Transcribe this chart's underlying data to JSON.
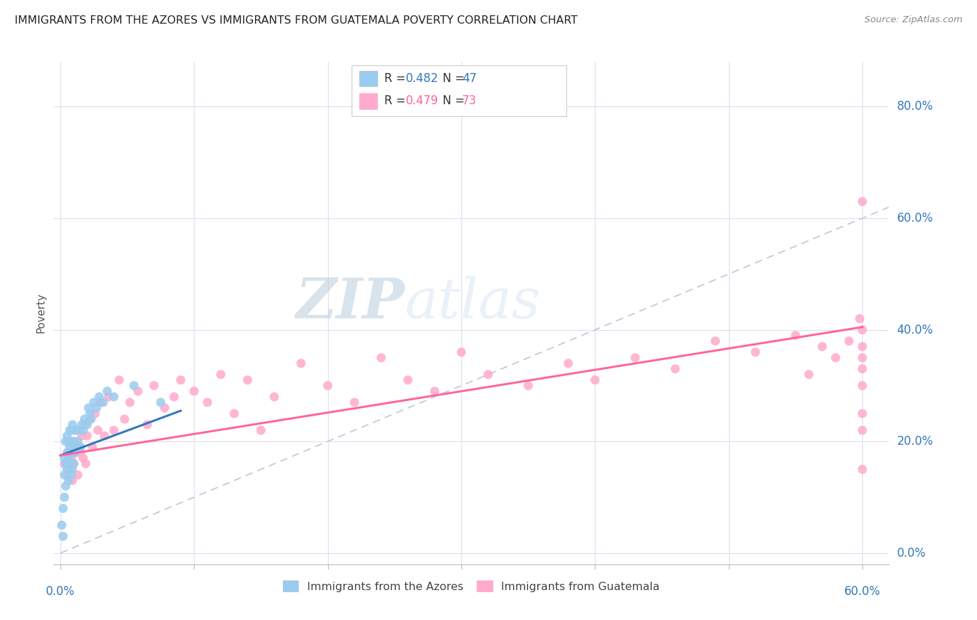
{
  "title": "IMMIGRANTS FROM THE AZORES VS IMMIGRANTS FROM GUATEMALA POVERTY CORRELATION CHART",
  "source": "Source: ZipAtlas.com",
  "ylabel": "Poverty",
  "ytick_labels": [
    "0.0%",
    "20.0%",
    "40.0%",
    "60.0%",
    "80.0%"
  ],
  "ytick_values": [
    0.0,
    0.2,
    0.4,
    0.6,
    0.8
  ],
  "xtick_vals": [
    0.0,
    0.1,
    0.2,
    0.3,
    0.4,
    0.5,
    0.6
  ],
  "xlim": [
    -0.005,
    0.62
  ],
  "ylim": [
    -0.02,
    0.88
  ],
  "legend_r1": "R = 0.482",
  "legend_n1": "N = 47",
  "legend_r2": "R = 0.479",
  "legend_n2": "N = 73",
  "azores_color": "#99CCEE",
  "guatemala_color": "#FFAACC",
  "azores_line_color": "#3377BB",
  "guatemala_line_color": "#FF6699",
  "diagonal_color": "#BBCCDD",
  "watermark_zip": "ZIP",
  "watermark_atlas": "atlas",
  "azores_points_x": [
    0.001,
    0.002,
    0.002,
    0.003,
    0.003,
    0.003,
    0.004,
    0.004,
    0.004,
    0.005,
    0.005,
    0.005,
    0.006,
    0.006,
    0.006,
    0.007,
    0.007,
    0.007,
    0.008,
    0.008,
    0.008,
    0.009,
    0.009,
    0.009,
    0.01,
    0.01,
    0.011,
    0.011,
    0.012,
    0.013,
    0.014,
    0.015,
    0.016,
    0.017,
    0.018,
    0.02,
    0.021,
    0.022,
    0.023,
    0.025,
    0.027,
    0.029,
    0.032,
    0.035,
    0.04,
    0.055,
    0.075
  ],
  "azores_points_y": [
    0.05,
    0.03,
    0.08,
    0.1,
    0.14,
    0.17,
    0.12,
    0.16,
    0.2,
    0.15,
    0.18,
    0.21,
    0.13,
    0.17,
    0.2,
    0.16,
    0.19,
    0.22,
    0.14,
    0.18,
    0.22,
    0.15,
    0.19,
    0.23,
    0.16,
    0.2,
    0.18,
    0.22,
    0.19,
    0.2,
    0.22,
    0.19,
    0.23,
    0.22,
    0.24,
    0.23,
    0.26,
    0.25,
    0.24,
    0.27,
    0.26,
    0.28,
    0.27,
    0.29,
    0.28,
    0.3,
    0.27
  ],
  "azores_line_x": [
    0.0,
    0.09
  ],
  "azores_line_y": [
    0.175,
    0.255
  ],
  "guatemala_points_x": [
    0.003,
    0.005,
    0.006,
    0.007,
    0.008,
    0.008,
    0.009,
    0.01,
    0.01,
    0.011,
    0.012,
    0.013,
    0.014,
    0.015,
    0.016,
    0.017,
    0.018,
    0.019,
    0.02,
    0.022,
    0.024,
    0.026,
    0.028,
    0.03,
    0.033,
    0.036,
    0.04,
    0.044,
    0.048,
    0.052,
    0.058,
    0.065,
    0.07,
    0.078,
    0.085,
    0.09,
    0.1,
    0.11,
    0.12,
    0.13,
    0.14,
    0.15,
    0.16,
    0.18,
    0.2,
    0.22,
    0.24,
    0.26,
    0.28,
    0.3,
    0.32,
    0.35,
    0.38,
    0.4,
    0.43,
    0.46,
    0.49,
    0.52,
    0.55,
    0.56,
    0.57,
    0.58,
    0.59,
    0.598,
    0.6,
    0.6,
    0.6,
    0.6,
    0.6,
    0.6,
    0.6,
    0.6,
    0.6
  ],
  "guatemala_points_y": [
    0.16,
    0.14,
    0.18,
    0.15,
    0.17,
    0.2,
    0.13,
    0.16,
    0.2,
    0.18,
    0.22,
    0.14,
    0.19,
    0.18,
    0.21,
    0.17,
    0.23,
    0.16,
    0.21,
    0.24,
    0.19,
    0.25,
    0.22,
    0.27,
    0.21,
    0.28,
    0.22,
    0.31,
    0.24,
    0.27,
    0.29,
    0.23,
    0.3,
    0.26,
    0.28,
    0.31,
    0.29,
    0.27,
    0.32,
    0.25,
    0.31,
    0.22,
    0.28,
    0.34,
    0.3,
    0.27,
    0.35,
    0.31,
    0.29,
    0.36,
    0.32,
    0.3,
    0.34,
    0.31,
    0.35,
    0.33,
    0.38,
    0.36,
    0.39,
    0.32,
    0.37,
    0.35,
    0.38,
    0.42,
    0.35,
    0.4,
    0.33,
    0.37,
    0.25,
    0.3,
    0.22,
    0.15,
    0.63
  ],
  "guatemala_line_x": [
    0.0,
    0.6
  ],
  "guatemala_line_y": [
    0.175,
    0.405
  ]
}
